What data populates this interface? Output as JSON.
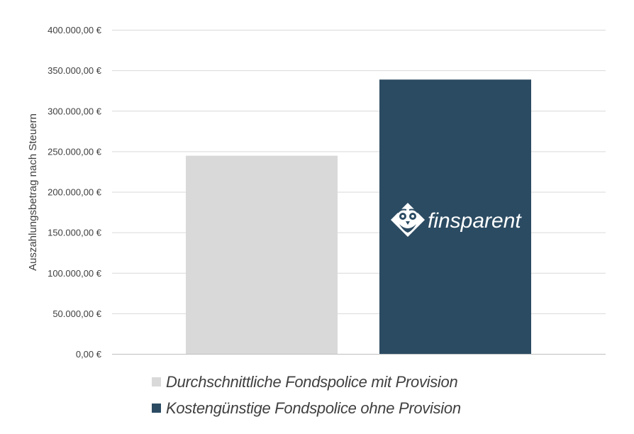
{
  "chart_data": {
    "type": "bar",
    "title": "",
    "xlabel": "",
    "ylabel": "Auszahlungsbetrag nach Steuern",
    "ylim": [
      0,
      400000
    ],
    "yticks": [
      "0,00 €",
      "50.000,00 €",
      "100.000,00 €",
      "150.000,00 €",
      "200.000,00 €",
      "250.000,00 €",
      "300.000,00 €",
      "350.000,00 €",
      "400.000,00 €"
    ],
    "categories": [
      "Durchschnittliche Fondspolice mit Provision",
      "Kostengünstige Fondspolice ohne Provision"
    ],
    "values": [
      245000,
      339000
    ],
    "grid": true,
    "legend_position": "bottom"
  },
  "series": [
    {
      "name": "Durchschnittliche Fondspolice mit Provision",
      "value": 245000,
      "color": "#d9d9d9"
    },
    {
      "name": "Kostengünstige Fondspolice ohne Provision",
      "value": 339000,
      "color": "#2b4b62"
    }
  ],
  "logo": {
    "text": "finsparent",
    "icon": "owl-diamond-icon",
    "color": "#ffffff"
  },
  "colors": {
    "grid": "#d9d9d9",
    "text": "#404040",
    "axis": "#bfbfbf"
  }
}
